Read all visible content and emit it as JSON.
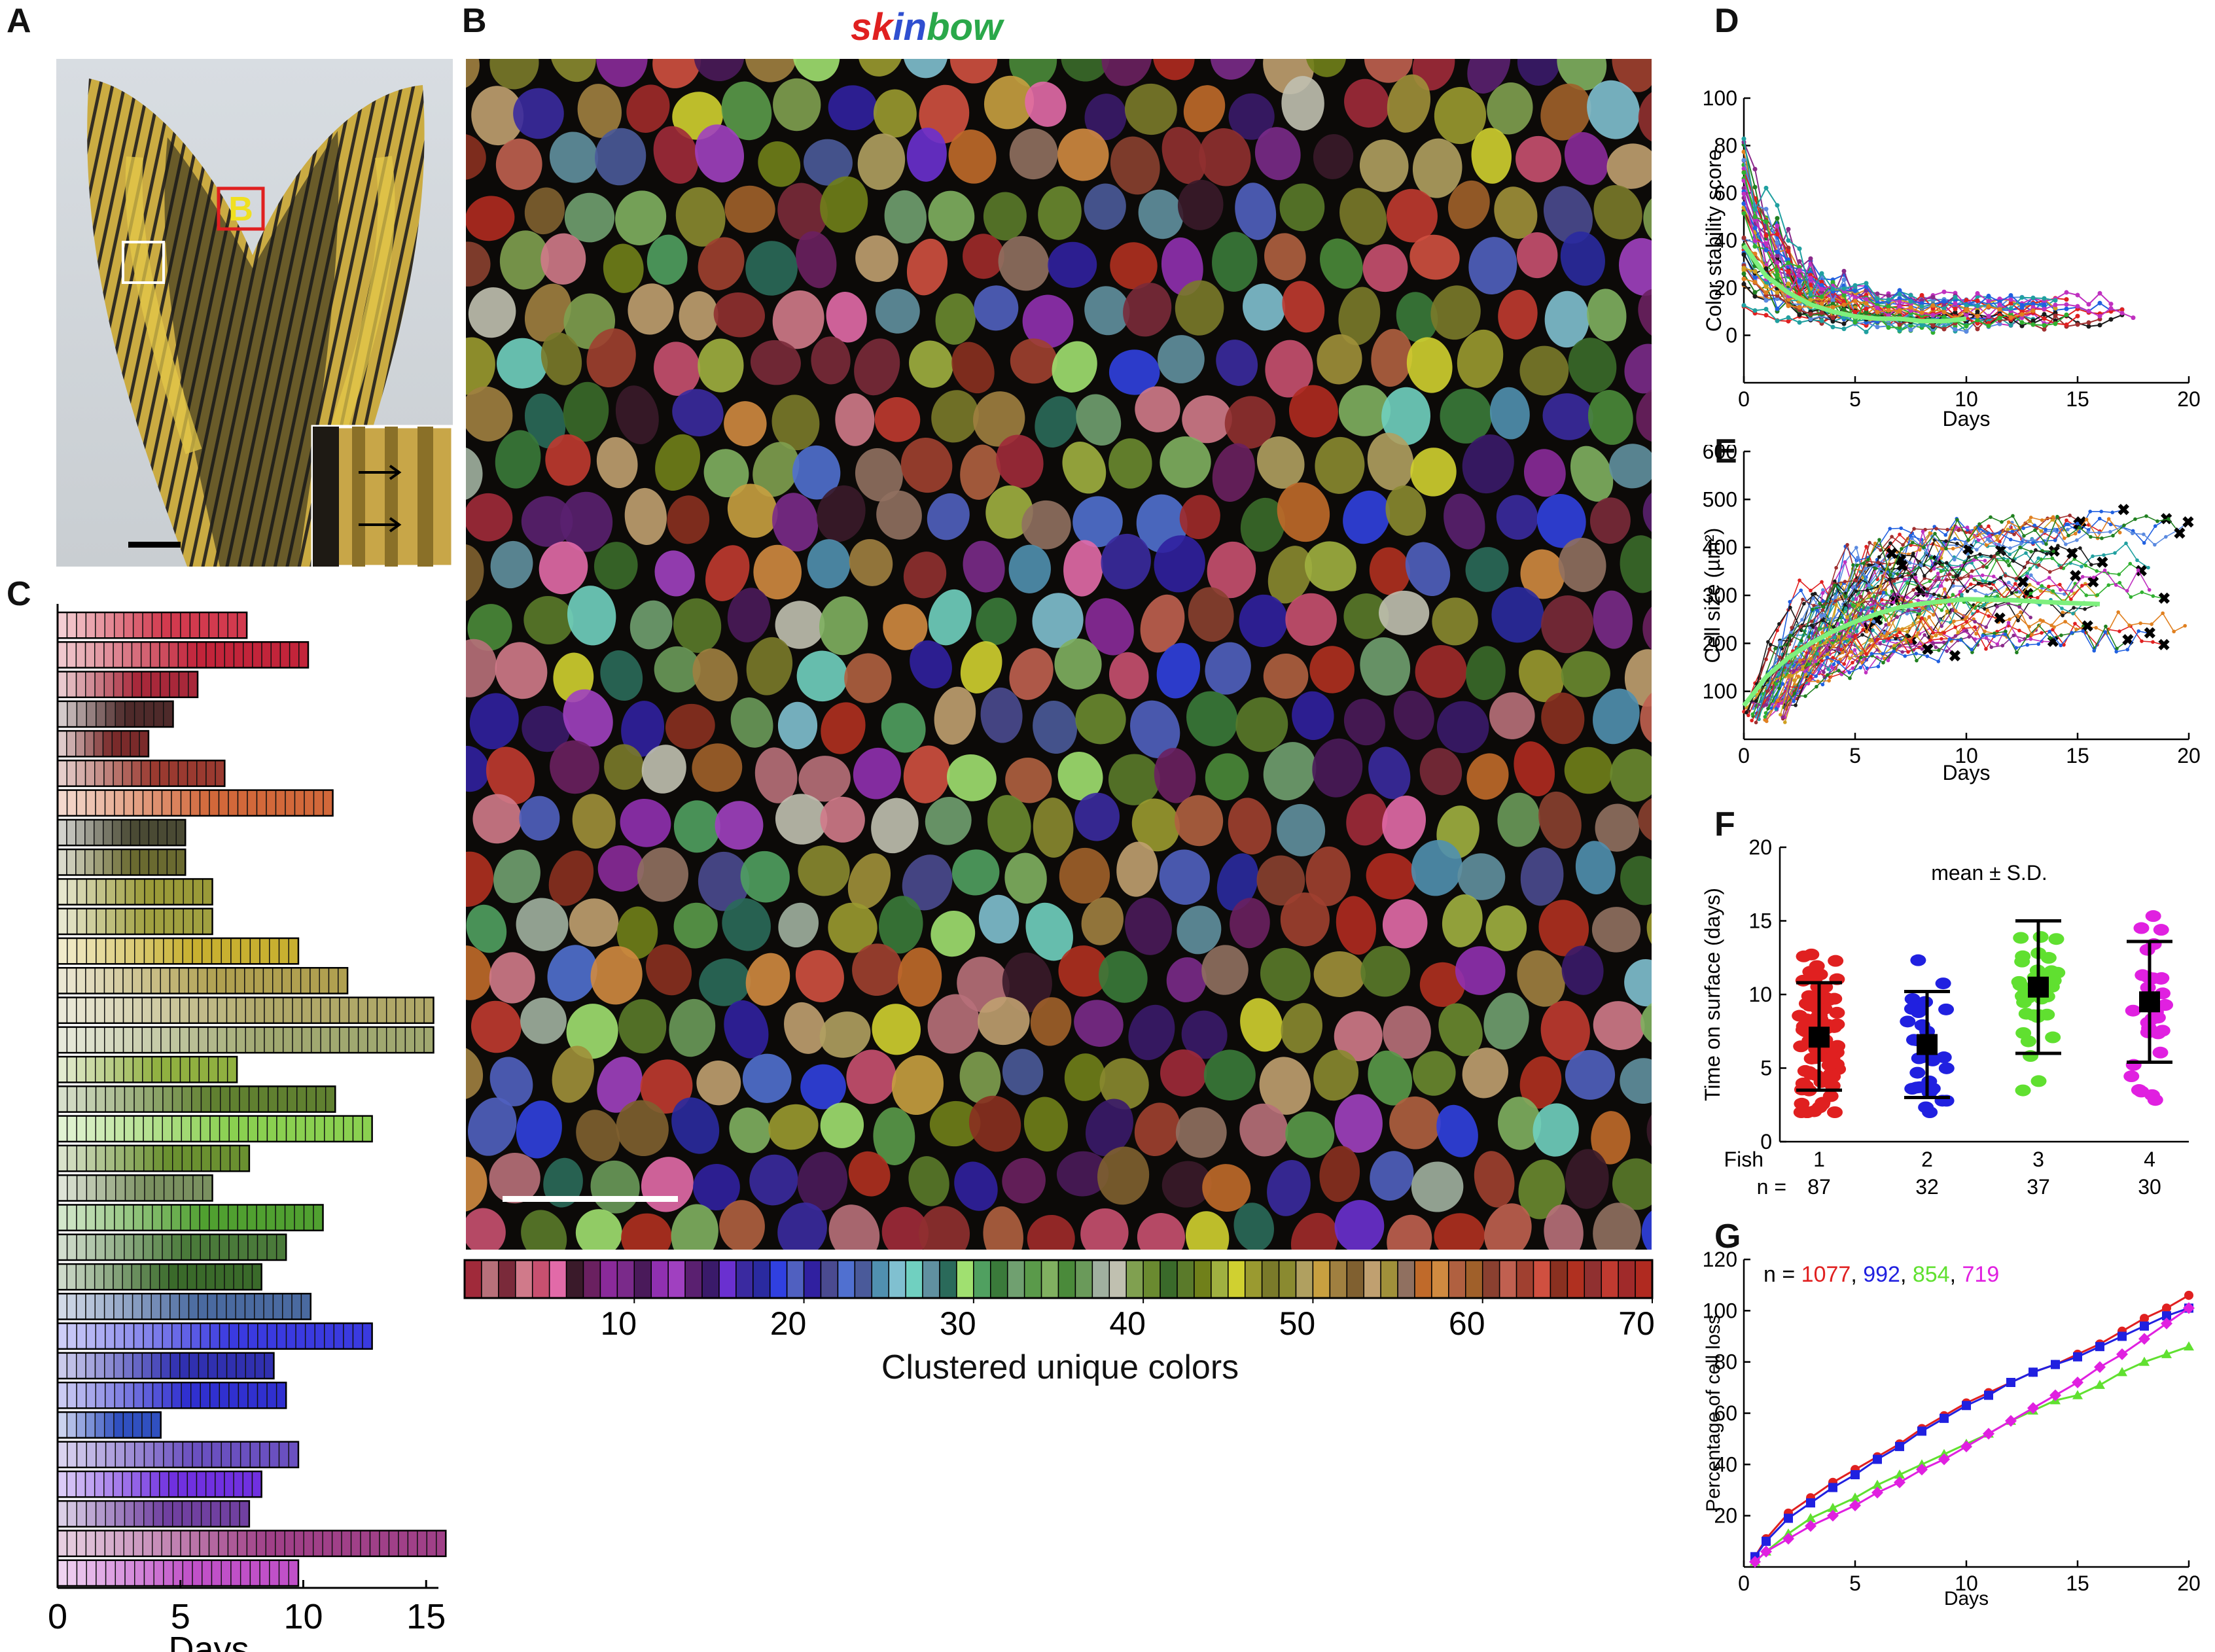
{
  "panel_letters": {
    "A": "A",
    "B": "B",
    "C": "C",
    "D": "D",
    "E": "E",
    "F": "F",
    "G": "G"
  },
  "panel_a": {
    "box_label": "B"
  },
  "panel_b": {
    "title_letters": [
      {
        "t": "sk",
        "color": "#e02020"
      },
      {
        "t": "in",
        "color": "#2f4fd0"
      },
      {
        "t": "bow",
        "color": "#2aa84a"
      }
    ]
  },
  "chart_data": [
    {
      "panel": "C",
      "type": "bar",
      "orientation": "horizontal",
      "xlabel": "Days",
      "xlim": [
        0,
        15.5
      ],
      "xticks": [
        0,
        5,
        10,
        15
      ],
      "values": [
        7.7,
        10.2,
        5.7,
        4.7,
        3.7,
        6.8,
        11.2,
        5.2,
        5.2,
        6.3,
        6.3,
        9.8,
        11.8,
        15.3,
        15.3,
        7.3,
        11.3,
        12.8,
        7.8,
        6.3,
        10.8,
        9.3,
        8.3,
        10.3,
        12.8,
        8.8,
        9.3,
        4.2,
        9.8,
        8.3,
        7.8,
        15.8,
        9.8
      ],
      "colors": [
        "#d23a4e",
        "#c2243a",
        "#a8283a",
        "#4e2a2a",
        "#7a2a2a",
        "#9a3a30",
        "#d2683a",
        "#4a4a34",
        "#6a6a30",
        "#9a9a38",
        "#a0a040",
        "#c8b030",
        "#b0a050",
        "#b0a868",
        "#a0a870",
        "#90b040",
        "#608030",
        "#8ad050",
        "#6a9030",
        "#7a9060",
        "#50a030",
        "#4a7a3a",
        "#3a6a2a",
        "#4a6aa0",
        "#3a3ae0",
        "#3030b0",
        "#3030d0",
        "#3050c0",
        "#6a50c0",
        "#7030e0",
        "#7040a0",
        "#a04088",
        "#c050c8"
      ]
    },
    {
      "panel": "B",
      "type": "heatmap",
      "xlabel": "Clustered unique colors",
      "xlim": [
        0,
        70
      ],
      "xticks": [
        10,
        20,
        30,
        40,
        50,
        60,
        70
      ],
      "colors": [
        "#a02a3a",
        "#b8707a",
        "#7a2a3a",
        "#d07a8a",
        "#c85070",
        "#e26aa8",
        "#3a1a2a",
        "#6a2060",
        "#8a2a9a",
        "#7a2a8a",
        "#4a1a5a",
        "#9030b0",
        "#a040c0",
        "#5a2070",
        "#3a1a6a",
        "#6a30d0",
        "#3a2aa0",
        "#2a2aa0",
        "#3040e0",
        "#5060c0",
        "#3020a0",
        "#4a4a90",
        "#5070d0",
        "#4a5a9a",
        "#5090b0",
        "#80c0d0",
        "#70d0c0",
        "#6090a0",
        "#2a6a5a",
        "#a0e070",
        "#50a060",
        "#3a7a3a",
        "#70a070",
        "#5a9a4a",
        "#80b060",
        "#4a8a3a",
        "#6a9a5a",
        "#a0b0a0",
        "#c0c0b0",
        "#80a050",
        "#6a8a30",
        "#3a6a2a",
        "#5a7a2a",
        "#70801a",
        "#a0b040",
        "#d0d030",
        "#9a9a30",
        "#7a7a2a",
        "#8a8a30",
        "#b0a060",
        "#c8a040",
        "#a08040",
        "#806030",
        "#c0a070",
        "#a0903a",
        "#907060",
        "#c06a2a",
        "#d08a40",
        "#b06040",
        "#a0602a",
        "#8a4030",
        "#c06050",
        "#a04030",
        "#d05040",
        "#8a3020",
        "#b03020",
        "#903030",
        "#c03a30",
        "#a02a2a",
        "#b02a20"
      ]
    },
    {
      "panel": "D",
      "type": "line",
      "xlabel": "Days",
      "ylabel": "Color stability score",
      "xlim": [
        0,
        20
      ],
      "ylim": [
        -20,
        100
      ],
      "xticks": [
        0,
        5,
        10,
        15,
        20
      ],
      "yticks": [
        0,
        20,
        40,
        60,
        80,
        100
      ],
      "mean_series": {
        "name": "",
        "x": [
          0,
          1,
          2,
          3,
          4,
          5,
          6,
          7,
          8,
          9,
          10
        ],
        "y": [
          38,
          25,
          18,
          13,
          10,
          8,
          7,
          7,
          6,
          6,
          7
        ]
      }
    },
    {
      "panel": "E",
      "type": "line",
      "xlabel": "Days",
      "ylabel": "Cell size (µm²)",
      "xlim": [
        0,
        20
      ],
      "ylim": [
        0,
        600
      ],
      "xticks": [
        0,
        5,
        10,
        15,
        20
      ],
      "yticks": [
        100,
        200,
        300,
        400,
        500,
        600
      ],
      "mean_series": {
        "name": "",
        "x": [
          0,
          1,
          2,
          3,
          4,
          5,
          6,
          7,
          8,
          9,
          10,
          12,
          14,
          16
        ],
        "y": [
          70,
          130,
          170,
          200,
          225,
          245,
          262,
          275,
          283,
          288,
          292,
          290,
          285,
          282
        ]
      }
    },
    {
      "panel": "F",
      "type": "scatter",
      "ylabel": "Time on surface (days)",
      "ylim": [
        0,
        20
      ],
      "yticks": [
        0,
        5,
        10,
        15,
        20
      ],
      "annotation": "mean ± S.D.",
      "row_labels": [
        "Fish",
        "n ="
      ],
      "categories": [
        "1",
        "2",
        "3",
        "4"
      ],
      "n": [
        "87",
        "32",
        "37",
        "30"
      ],
      "colors": [
        "#e02020",
        "#2020e0",
        "#60e030",
        "#e020e0"
      ],
      "mean": [
        7.1,
        6.6,
        10.5,
        9.5
      ],
      "sd_low": [
        3.5,
        3.0,
        6.0,
        5.4
      ],
      "sd_high": [
        10.8,
        10.2,
        15.0,
        13.6
      ]
    },
    {
      "panel": "G",
      "type": "line",
      "xlabel": "Days",
      "ylabel": "Percentage  of cell loss",
      "xlim": [
        0,
        20
      ],
      "ylim": [
        0,
        120
      ],
      "xticks": [
        0,
        5,
        10,
        15,
        20
      ],
      "yticks": [
        20,
        40,
        60,
        80,
        100,
        120
      ],
      "legend_prefix": "n = ",
      "series": [
        {
          "name": "1077",
          "color": "#e02020",
          "marker": "circle",
          "x": [
            0.5,
            1,
            2,
            3,
            4,
            5,
            6,
            7,
            8,
            9,
            10,
            11,
            12,
            13,
            14,
            15,
            16,
            17,
            18,
            19,
            20
          ],
          "y": [
            4,
            11,
            21,
            27,
            33,
            38,
            43,
            48,
            54,
            59,
            64,
            68,
            72,
            76,
            79,
            83,
            87,
            92,
            97,
            101,
            106
          ]
        },
        {
          "name": "992",
          "color": "#2020e0",
          "marker": "square",
          "x": [
            0.5,
            1,
            2,
            3,
            4,
            5,
            6,
            7,
            8,
            9,
            10,
            11,
            12,
            13,
            14,
            15,
            16,
            17,
            18,
            19,
            20
          ],
          "y": [
            4,
            10,
            19,
            25,
            31,
            36,
            42,
            47,
            53,
            58,
            63,
            67,
            72,
            76,
            79,
            82,
            86,
            90,
            94,
            98,
            101
          ]
        },
        {
          "name": "854",
          "color": "#60e030",
          "marker": "triangle",
          "x": [
            0.5,
            1,
            2,
            3,
            4,
            5,
            6,
            7,
            8,
            9,
            10,
            11,
            12,
            13,
            14,
            15,
            16,
            17,
            18,
            19,
            20
          ],
          "y": [
            2,
            6,
            13,
            19,
            23,
            27,
            32,
            36,
            40,
            44,
            48,
            52,
            57,
            61,
            65,
            67,
            71,
            76,
            80,
            83,
            86
          ]
        },
        {
          "name": "719",
          "color": "#e020e0",
          "marker": "diamond",
          "x": [
            0.5,
            1,
            2,
            3,
            4,
            5,
            6,
            7,
            8,
            9,
            10,
            11,
            12,
            13,
            14,
            15,
            16,
            17,
            18,
            19,
            20
          ],
          "y": [
            2,
            6,
            11,
            16,
            20,
            24,
            29,
            33,
            38,
            42,
            47,
            52,
            57,
            62,
            67,
            72,
            78,
            83,
            89,
            95,
            101
          ]
        }
      ]
    }
  ]
}
